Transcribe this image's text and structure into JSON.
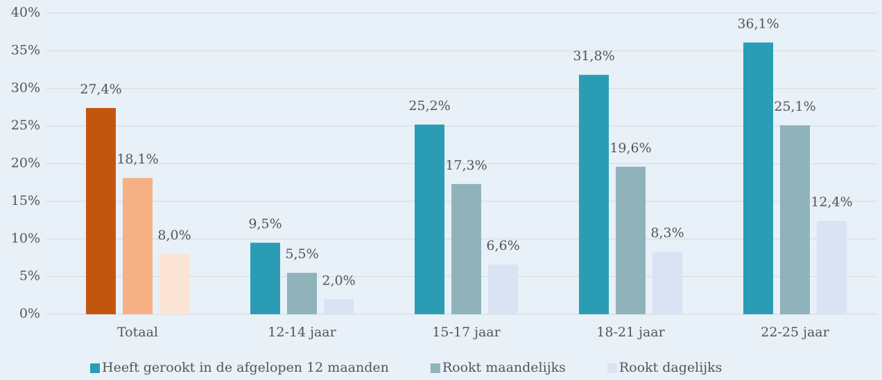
{
  "chart_data": {
    "type": "bar",
    "categories": [
      "Totaal",
      "12-14 jaar",
      "15-17 jaar",
      "18-21 jaar",
      "22-25 jaar"
    ],
    "series": [
      {
        "name": "Heeft gerookt in de afgelopen 12 maanden",
        "color": "#2a9db5",
        "colors": [
          "#c3560f",
          "#2a9db5",
          "#2a9db5",
          "#2a9db5",
          "#2a9db5"
        ],
        "values": [
          27.4,
          9.5,
          25.2,
          31.8,
          36.1
        ],
        "value_labels": [
          "27,4%",
          "9,5%",
          "25,2%",
          "31,8%",
          "36,1%"
        ]
      },
      {
        "name": "Rookt maandelijks",
        "color": "#90b3bb",
        "colors": [
          "#f5b183",
          "#90b3bb",
          "#90b3bb",
          "#90b3bb",
          "#90b3bb"
        ],
        "values": [
          18.1,
          5.5,
          17.3,
          19.6,
          25.1
        ],
        "value_labels": [
          "18,1%",
          "5,5%",
          "17,3%",
          "19,6%",
          "25,1%"
        ]
      },
      {
        "name": "Rookt dagelijks",
        "color": "#d9e3f3",
        "colors": [
          "#fbe3d5",
          "#d9e3f3",
          "#d9e3f3",
          "#d9e3f3",
          "#d9e3f3"
        ],
        "values": [
          8.0,
          2.0,
          6.6,
          8.3,
          12.4
        ],
        "value_labels": [
          "8,0%",
          "2,0%",
          "6,6%",
          "8,3%",
          "12,4%"
        ]
      }
    ],
    "ylim": [
      0,
      40
    ],
    "yticks": [
      {
        "value": 0,
        "label": "0%"
      },
      {
        "value": 5,
        "label": "5%"
      },
      {
        "value": 10,
        "label": "10%"
      },
      {
        "value": 15,
        "label": "15%"
      },
      {
        "value": 20,
        "label": "20%"
      },
      {
        "value": 25,
        "label": "25%"
      },
      {
        "value": 30,
        "label": "30%"
      },
      {
        "value": 35,
        "label": "35%"
      },
      {
        "value": 40,
        "label": "40%"
      }
    ],
    "grid": true,
    "legend": "bottom"
  }
}
